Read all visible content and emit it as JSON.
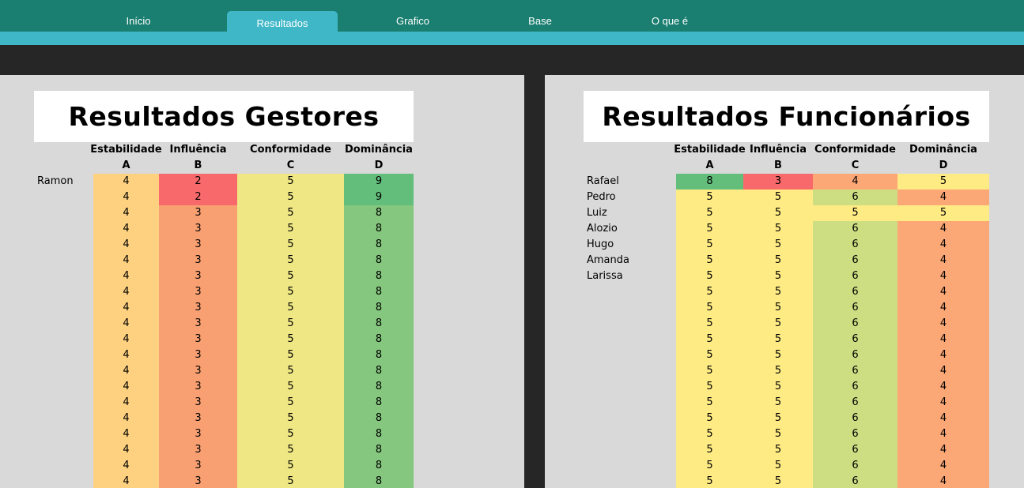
{
  "tabs": [
    {
      "label": "Início",
      "active": false
    },
    {
      "label": "Resultados",
      "active": true
    },
    {
      "label": "Grafico",
      "active": false
    },
    {
      "label": "Base",
      "active": false
    },
    {
      "label": "O que é",
      "active": false
    }
  ],
  "colors": {
    "topbar": "#1a7f70",
    "accent": "#40b7c7",
    "dark": "#262626",
    "panel": "#d9d9d9"
  },
  "tables": [
    {
      "title": "Resultados Gestores",
      "headers": [
        {
          "name": "Estabilidade",
          "letter": "A"
        },
        {
          "name": "Influência",
          "letter": "B"
        },
        {
          "name": "Conformidade",
          "letter": "C"
        },
        {
          "name": "Dominância",
          "letter": "D"
        }
      ],
      "scale": [
        {
          "4": "#fdd17f"
        },
        {
          "2": "#f8696b",
          "3": "#f9a072"
        },
        {
          "5": "#efe784"
        },
        {
          "9": "#63be7b",
          "8": "#85c77e"
        }
      ],
      "rows": [
        {
          "name": "Ramon",
          "v": [
            4,
            2,
            5,
            9
          ]
        },
        {
          "name": "",
          "v": [
            4,
            2,
            5,
            9
          ]
        },
        {
          "name": "",
          "v": [
            4,
            3,
            5,
            8
          ]
        },
        {
          "name": "",
          "v": [
            4,
            3,
            5,
            8
          ]
        },
        {
          "name": "",
          "v": [
            4,
            3,
            5,
            8
          ]
        },
        {
          "name": "",
          "v": [
            4,
            3,
            5,
            8
          ]
        },
        {
          "name": "",
          "v": [
            4,
            3,
            5,
            8
          ]
        },
        {
          "name": "",
          "v": [
            4,
            3,
            5,
            8
          ]
        },
        {
          "name": "",
          "v": [
            4,
            3,
            5,
            8
          ]
        },
        {
          "name": "",
          "v": [
            4,
            3,
            5,
            8
          ]
        },
        {
          "name": "",
          "v": [
            4,
            3,
            5,
            8
          ]
        },
        {
          "name": "",
          "v": [
            4,
            3,
            5,
            8
          ]
        },
        {
          "name": "",
          "v": [
            4,
            3,
            5,
            8
          ]
        },
        {
          "name": "",
          "v": [
            4,
            3,
            5,
            8
          ]
        },
        {
          "name": "",
          "v": [
            4,
            3,
            5,
            8
          ]
        },
        {
          "name": "",
          "v": [
            4,
            3,
            5,
            8
          ]
        },
        {
          "name": "",
          "v": [
            4,
            3,
            5,
            8
          ]
        },
        {
          "name": "",
          "v": [
            4,
            3,
            5,
            8
          ]
        },
        {
          "name": "",
          "v": [
            4,
            3,
            5,
            8
          ]
        },
        {
          "name": "",
          "v": [
            4,
            3,
            5,
            8
          ]
        }
      ]
    },
    {
      "title": "Resultados Funcionários",
      "headers": [
        {
          "name": "Estabilidade",
          "letter": "A"
        },
        {
          "name": "Influência",
          "letter": "B"
        },
        {
          "name": "Conformidade",
          "letter": "C"
        },
        {
          "name": "Dominância",
          "letter": "D"
        }
      ],
      "scale": [
        {
          "8": "#63be7b",
          "5": "#ffeb84"
        },
        {
          "3": "#f8696b",
          "5": "#ffeb84"
        },
        {
          "4": "#fba776",
          "5": "#ffeb84",
          "6": "#cddd82"
        },
        {
          "5": "#ffeb84",
          "4": "#fba776"
        }
      ],
      "rows": [
        {
          "name": "Rafael",
          "v": [
            8,
            3,
            4,
            5
          ]
        },
        {
          "name": "Pedro",
          "v": [
            5,
            5,
            6,
            4
          ]
        },
        {
          "name": "Luiz",
          "v": [
            5,
            5,
            5,
            5
          ]
        },
        {
          "name": "Alozio",
          "v": [
            5,
            5,
            6,
            4
          ]
        },
        {
          "name": "Hugo",
          "v": [
            5,
            5,
            6,
            4
          ]
        },
        {
          "name": "Amanda",
          "v": [
            5,
            5,
            6,
            4
          ]
        },
        {
          "name": "Larissa",
          "v": [
            5,
            5,
            6,
            4
          ]
        },
        {
          "name": "",
          "v": [
            5,
            5,
            6,
            4
          ]
        },
        {
          "name": "",
          "v": [
            5,
            5,
            6,
            4
          ]
        },
        {
          "name": "",
          "v": [
            5,
            5,
            6,
            4
          ]
        },
        {
          "name": "",
          "v": [
            5,
            5,
            6,
            4
          ]
        },
        {
          "name": "",
          "v": [
            5,
            5,
            6,
            4
          ]
        },
        {
          "name": "",
          "v": [
            5,
            5,
            6,
            4
          ]
        },
        {
          "name": "",
          "v": [
            5,
            5,
            6,
            4
          ]
        },
        {
          "name": "",
          "v": [
            5,
            5,
            6,
            4
          ]
        },
        {
          "name": "",
          "v": [
            5,
            5,
            6,
            4
          ]
        },
        {
          "name": "",
          "v": [
            5,
            5,
            6,
            4
          ]
        },
        {
          "name": "",
          "v": [
            5,
            5,
            6,
            4
          ]
        },
        {
          "name": "",
          "v": [
            5,
            5,
            6,
            4
          ]
        },
        {
          "name": "",
          "v": [
            5,
            5,
            6,
            4
          ]
        }
      ]
    }
  ]
}
